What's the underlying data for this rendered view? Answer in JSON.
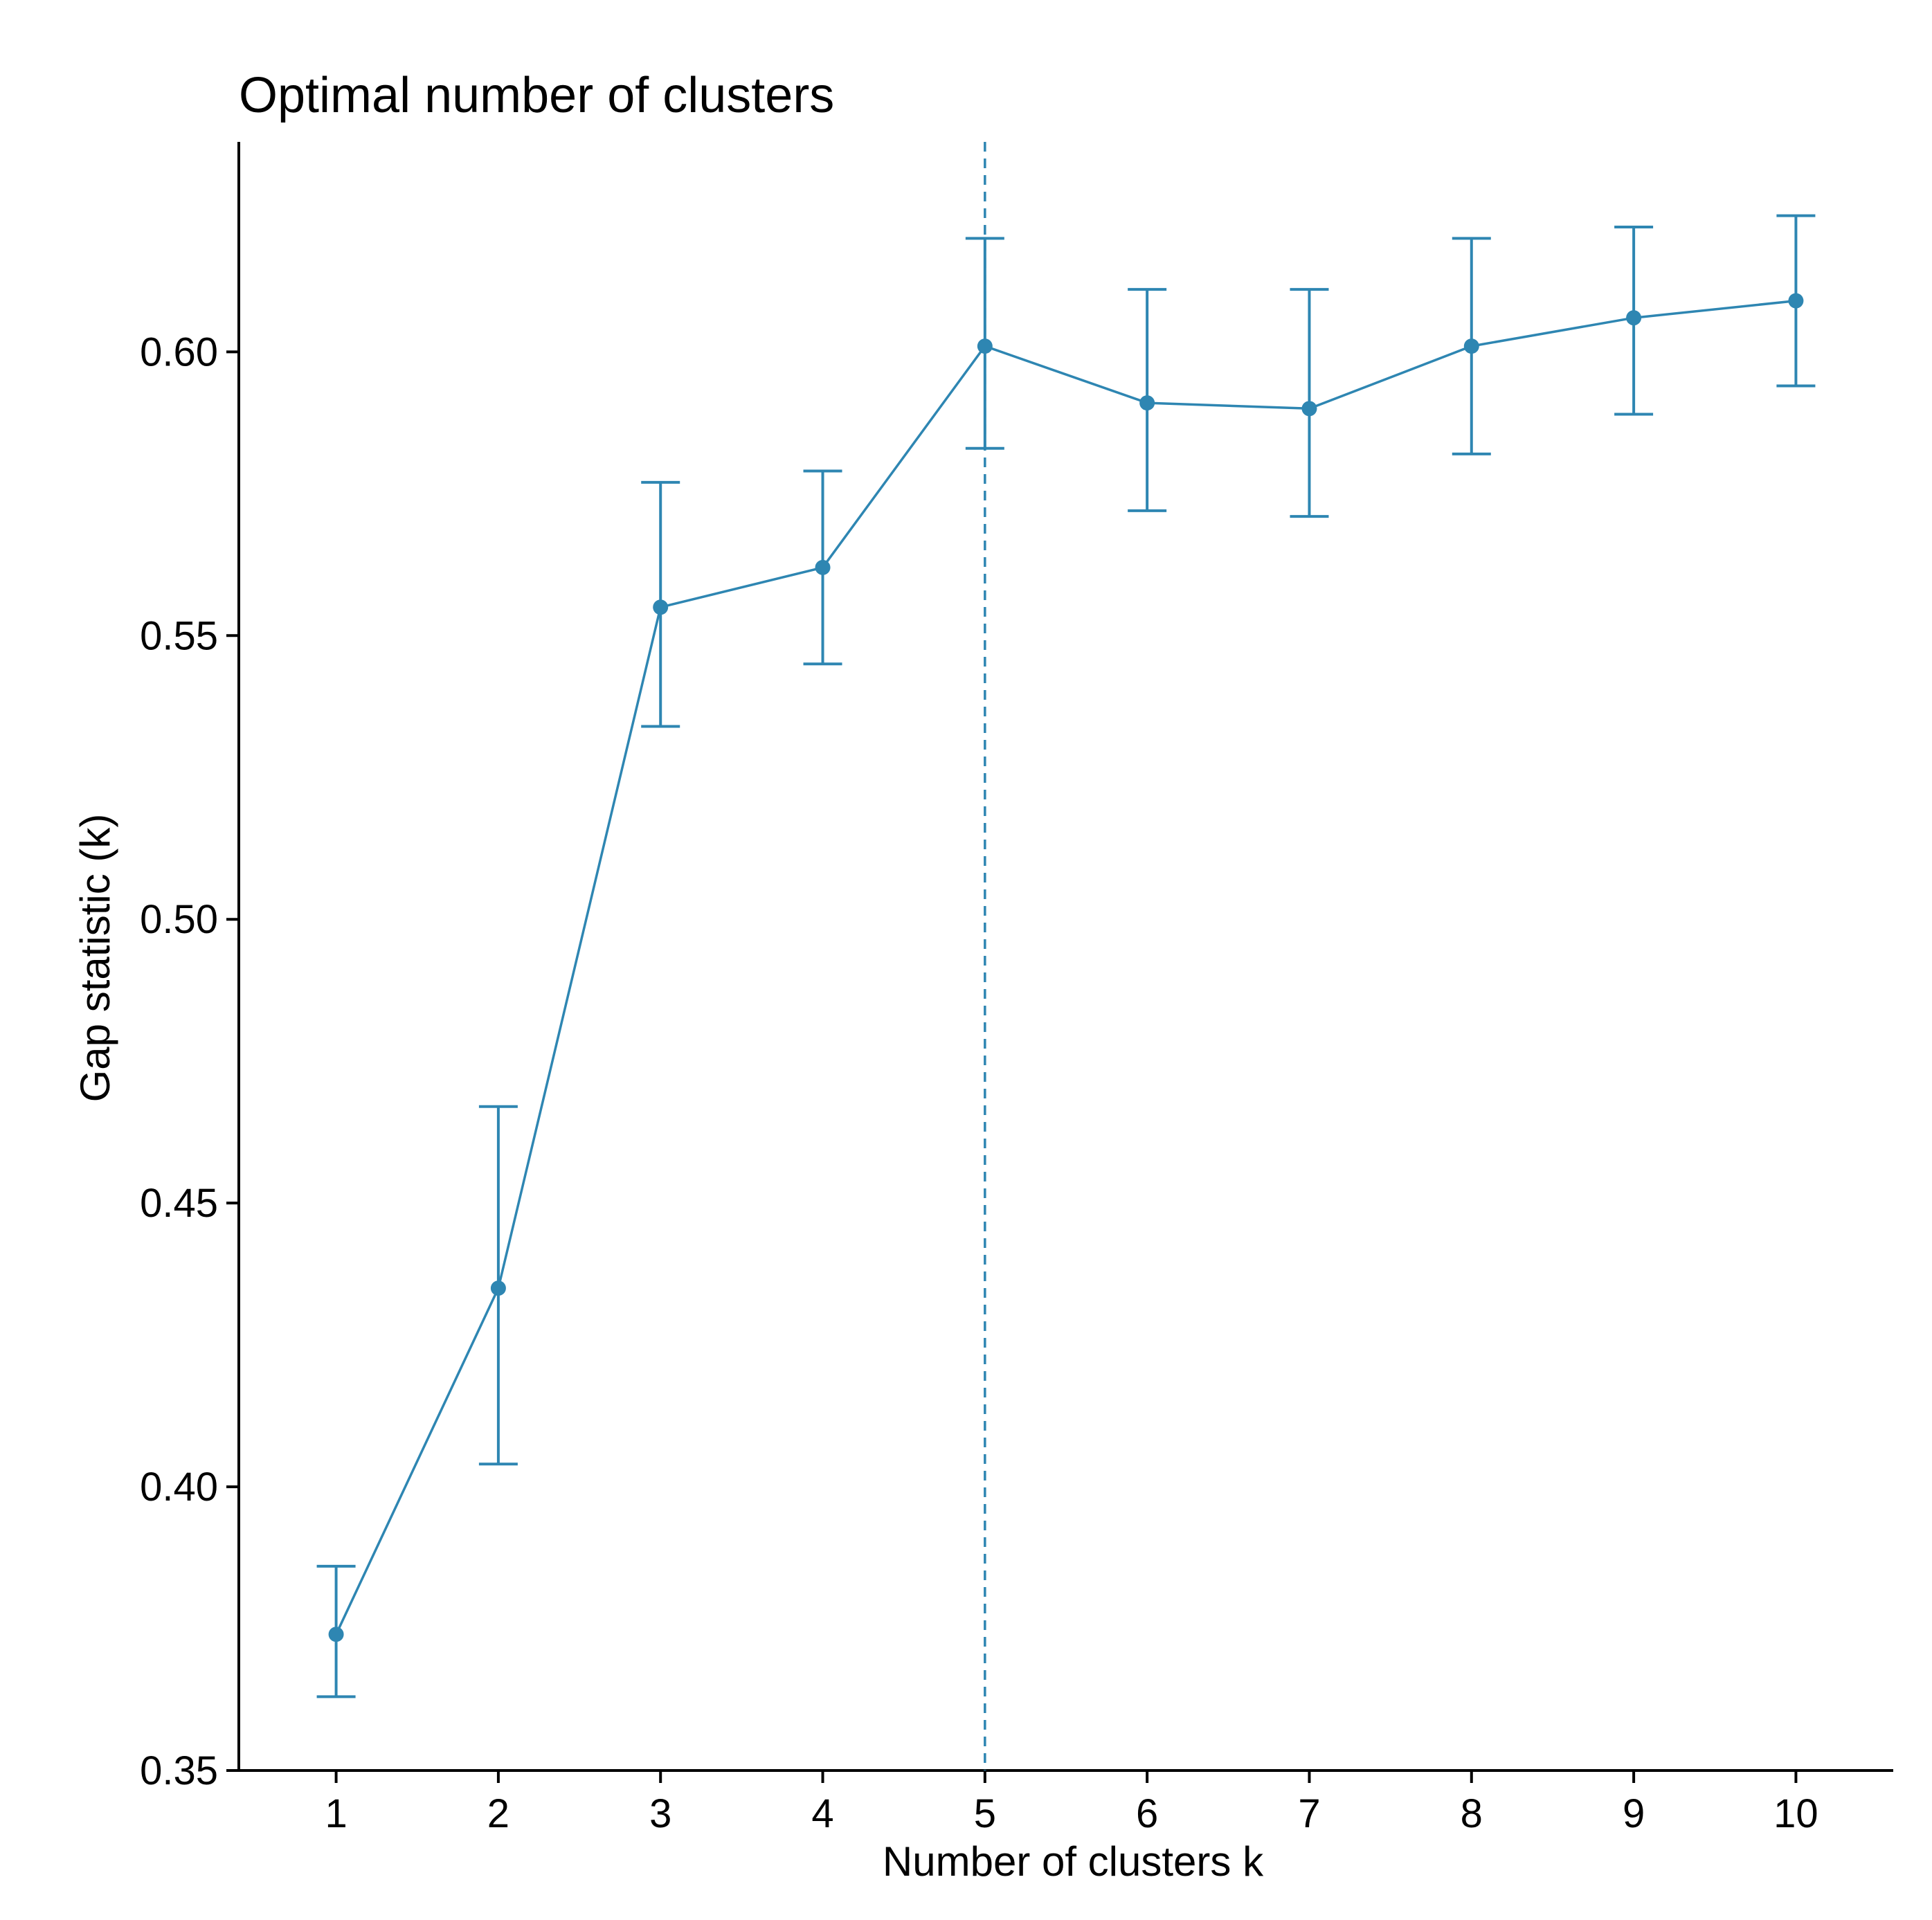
{
  "chart_data": {
    "type": "line",
    "title": "Optimal number of clusters",
    "xlabel": "Number of clusters k",
    "ylabel": "Gap statistic (k)",
    "x": [
      1,
      2,
      3,
      4,
      5,
      6,
      7,
      8,
      9,
      10
    ],
    "x_tick_labels": [
      "1",
      "2",
      "3",
      "4",
      "5",
      "6",
      "7",
      "8",
      "9",
      "10"
    ],
    "y_ticks": [
      0.35,
      0.4,
      0.45,
      0.5,
      0.55,
      0.6
    ],
    "y_tick_labels": [
      "0.35",
      "0.40",
      "0.45",
      "0.50",
      "0.55",
      "0.60"
    ],
    "xlim": [
      0.4,
      10.6
    ],
    "ylim": [
      0.35,
      0.637
    ],
    "series": [
      {
        "name": "Gap statistic",
        "values": [
          0.374,
          0.435,
          0.555,
          0.562,
          0.601,
          0.591,
          0.59,
          0.601,
          0.606,
          0.609
        ],
        "error_low": [
          0.363,
          0.404,
          0.534,
          0.545,
          0.583,
          0.572,
          0.571,
          0.582,
          0.589,
          0.594
        ],
        "error_high": [
          0.386,
          0.467,
          0.577,
          0.579,
          0.62,
          0.611,
          0.611,
          0.62,
          0.622,
          0.624
        ]
      }
    ],
    "optimal_k": 5,
    "grid": false,
    "color": "#2e86b2"
  }
}
